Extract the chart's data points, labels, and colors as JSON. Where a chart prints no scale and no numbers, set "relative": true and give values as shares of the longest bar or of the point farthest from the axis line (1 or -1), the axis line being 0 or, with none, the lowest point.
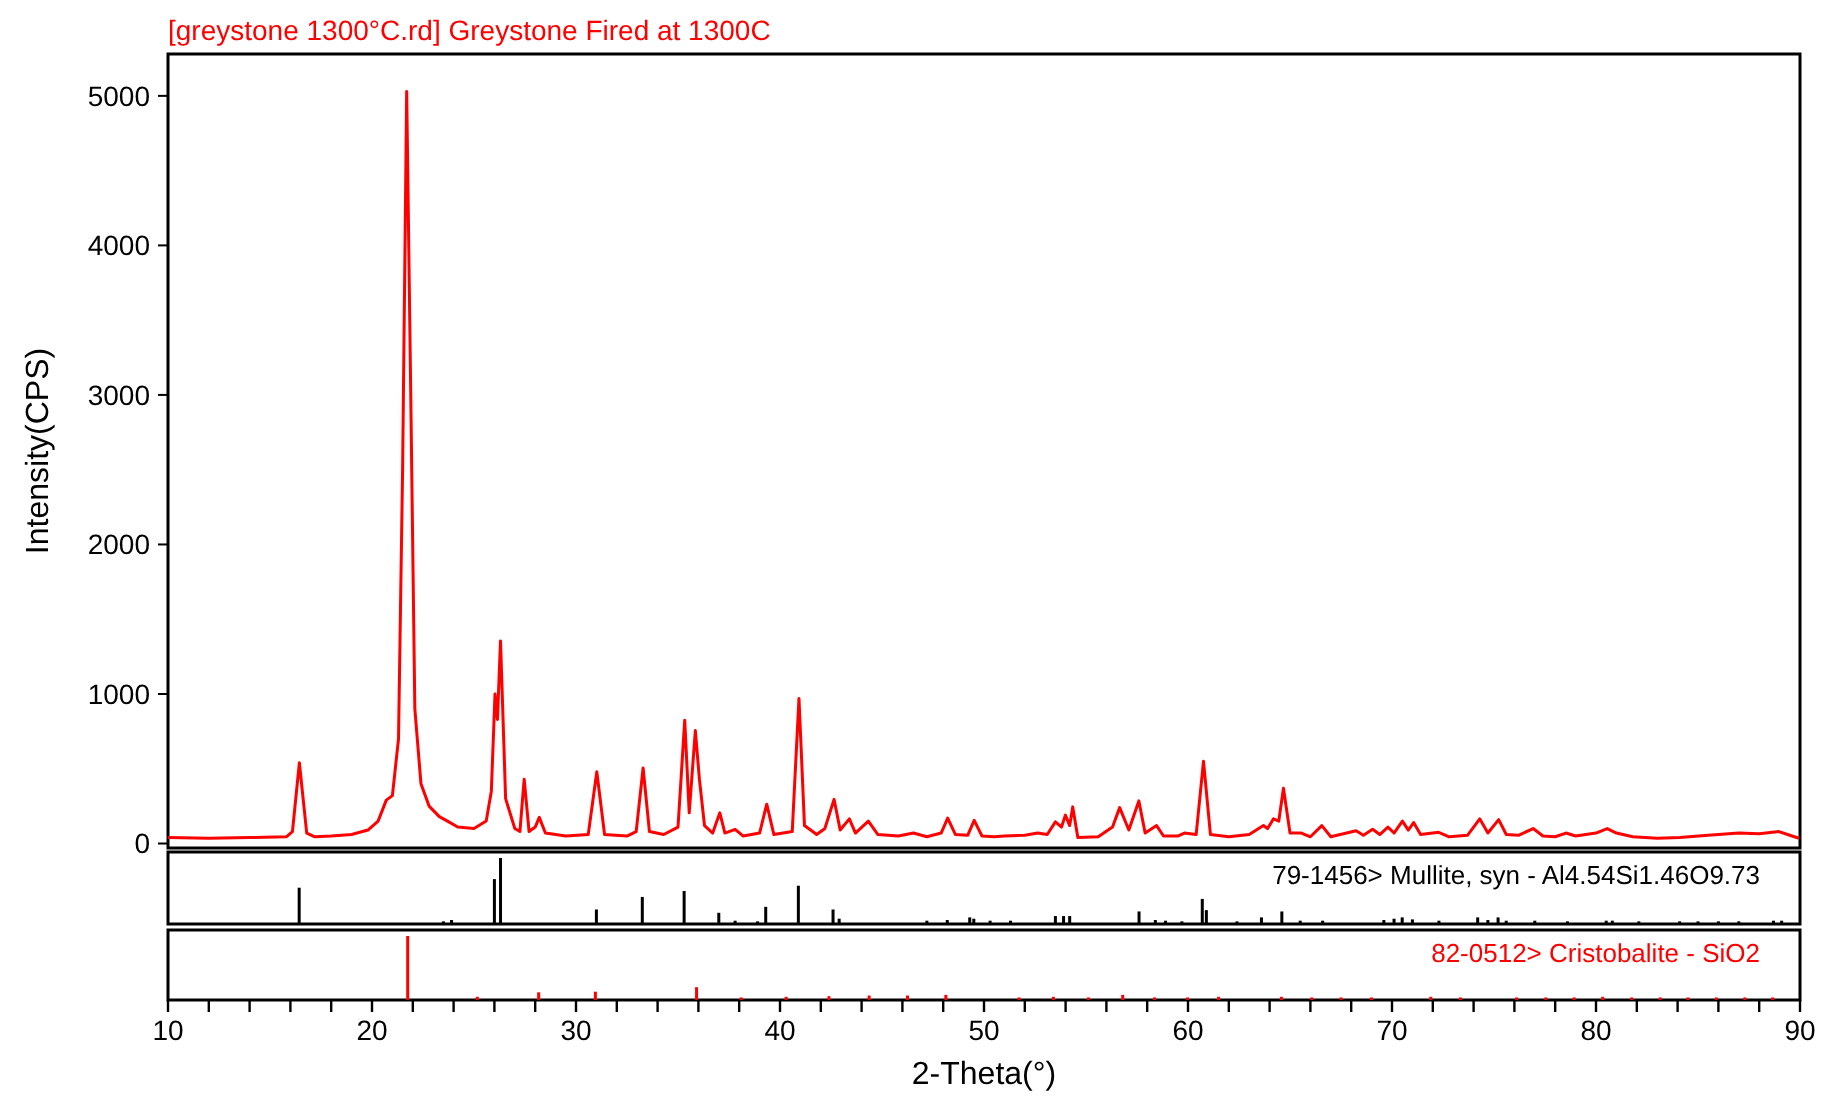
{
  "chart_data": [
    {
      "type": "line",
      "title": "[greystone 1300°C.rd] Greystone Fired at 1300C",
      "ylabel": "Intensity(CPS)",
      "xlim": [
        10,
        90
      ],
      "ylim": [
        -30,
        5280
      ],
      "yticks": [
        0,
        1000,
        2000,
        3000,
        4000,
        5000
      ],
      "tick_labels": "y",
      "series": [
        {
          "color": "#ff0000",
          "x": [
            10,
            12,
            14,
            15.8,
            16.1,
            16.44,
            16.8,
            17.2,
            18,
            19,
            19.8,
            20.3,
            20.7,
            21.0,
            21.3,
            21.5,
            21.7,
            21.9,
            22.1,
            22.4,
            22.8,
            23.3,
            23.7,
            24.2,
            25,
            25.6,
            25.85,
            26.03,
            26.15,
            26.3,
            26.55,
            27.0,
            27.25,
            27.46,
            27.7,
            28.0,
            28.2,
            28.5,
            29.5,
            30.6,
            31.02,
            31.4,
            32.5,
            32.95,
            33.29,
            33.6,
            34.3,
            35.0,
            35.33,
            35.55,
            35.85,
            36.05,
            36.3,
            36.7,
            37.05,
            37.3,
            37.8,
            38.2,
            39.0,
            39.35,
            39.7,
            40.6,
            40.93,
            41.2,
            41.8,
            42.2,
            42.65,
            42.95,
            43.4,
            43.7,
            44.33,
            44.8,
            45.8,
            46.54,
            47.2,
            47.9,
            48.22,
            48.6,
            49.2,
            49.52,
            49.9,
            50.5,
            51.0,
            52.0,
            52.63,
            53.1,
            53.5,
            53.8,
            53.99,
            54.2,
            54.35,
            54.6,
            55.6,
            56.3,
            56.65,
            57.1,
            57.59,
            57.9,
            58.46,
            58.8,
            59.5,
            59.82,
            60.4,
            60.76,
            61.1,
            62.0,
            63.0,
            63.7,
            63.9,
            64.19,
            64.45,
            64.68,
            65.0,
            65.56,
            66.0,
            66.56,
            67.0,
            68.24,
            68.6,
            69.05,
            69.4,
            69.8,
            70.1,
            70.51,
            70.8,
            71.06,
            71.4,
            72.29,
            72.8,
            73.7,
            74.3,
            74.7,
            75.23,
            75.6,
            76.2,
            76.92,
            77.4,
            78.0,
            78.53,
            79.0,
            80.0,
            80.55,
            81.0,
            81.8,
            83.0,
            84.1,
            85.5,
            87.0,
            88.0,
            88.97,
            89.5,
            89.95
          ],
          "values": [
            40,
            35,
            40,
            45,
            80,
            540,
            70,
            45,
            50,
            60,
            90,
            150,
            290,
            320,
            700,
            2500,
            5030,
            3000,
            900,
            400,
            250,
            180,
            150,
            110,
            100,
            150,
            350,
            1000,
            830,
            1355,
            300,
            100,
            80,
            430,
            80,
            110,
            175,
            70,
            50,
            60,
            480,
            60,
            50,
            80,
            505,
            80,
            60,
            110,
            825,
            205,
            755,
            430,
            120,
            70,
            205,
            70,
            95,
            50,
            70,
            263,
            60,
            80,
            970,
            120,
            60,
            100,
            295,
            90,
            165,
            70,
            150,
            60,
            50,
            70,
            45,
            70,
            170,
            60,
            55,
            155,
            50,
            45,
            50,
            55,
            70,
            60,
            145,
            110,
            190,
            120,
            245,
            40,
            45,
            110,
            240,
            90,
            285,
            70,
            120,
            50,
            50,
            70,
            60,
            550,
            60,
            45,
            60,
            120,
            100,
            165,
            150,
            370,
            70,
            70,
            45,
            120,
            45,
            85,
            55,
            95,
            60,
            110,
            70,
            150,
            90,
            140,
            60,
            75,
            45,
            55,
            165,
            70,
            160,
            60,
            55,
            100,
            50,
            45,
            70,
            50,
            70,
            100,
            70,
            45,
            35,
            40,
            55,
            70,
            65,
            80,
            55,
            35
          ]
        }
      ]
    },
    {
      "type": "bar",
      "relative": true,
      "xlim": [
        10,
        90
      ],
      "tick_labels": false,
      "series": [
        {
          "name": "79-1456> Mullite, syn - Al4.54Si1.46O9.73",
          "color": "#000000",
          "x": [
            16.43,
            23.5,
            23.9,
            26.0,
            26.3,
            31.0,
            33.25,
            35.3,
            37.0,
            37.8,
            38.9,
            39.3,
            40.9,
            42.6,
            42.9,
            47.2,
            48.2,
            49.3,
            49.5,
            50.3,
            51.3,
            53.5,
            53.9,
            54.2,
            57.6,
            58.4,
            58.9,
            59.7,
            60.7,
            60.9,
            62.4,
            63.6,
            64.6,
            65.5,
            66.6,
            69.6,
            70.1,
            70.5,
            71.0,
            72.3,
            74.2,
            74.7,
            75.2,
            75.6,
            77.0,
            78.6,
            80.5,
            80.8,
            82.1,
            84.1,
            85.0,
            86.0,
            87.0,
            88.7,
            89.1
          ],
          "values": [
            0.55,
            0.04,
            0.06,
            0.68,
            1,
            0.22,
            0.41,
            0.5,
            0.17,
            0.05,
            0.04,
            0.26,
            0.58,
            0.22,
            0.08,
            0.05,
            0.06,
            0.1,
            0.08,
            0.05,
            0.05,
            0.12,
            0.12,
            0.12,
            0.19,
            0.06,
            0.05,
            0.04,
            0.38,
            0.21,
            0.04,
            0.1,
            0.19,
            0.05,
            0.05,
            0.06,
            0.08,
            0.1,
            0.07,
            0.05,
            0.1,
            0.06,
            0.1,
            0.05,
            0.05,
            0.04,
            0.05,
            0.05,
            0.04,
            0.04,
            0.04,
            0.04,
            0.04,
            0.05,
            0.05
          ]
        }
      ]
    },
    {
      "type": "bar",
      "relative": true,
      "xlabel": "2-Theta(°)",
      "xlim": [
        10,
        90
      ],
      "tick_labels": "x",
      "xticks": [
        10,
        {
          "value": 12,
          "label": null
        },
        {
          "value": 14,
          "label": null
        },
        {
          "value": 16,
          "label": null
        },
        {
          "value": 18,
          "label": null
        },
        20,
        {
          "value": 22,
          "label": null
        },
        {
          "value": 24,
          "label": null
        },
        {
          "value": 26,
          "label": null
        },
        {
          "value": 28,
          "label": null
        },
        30,
        {
          "value": 32,
          "label": null
        },
        {
          "value": 34,
          "label": null
        },
        {
          "value": 36,
          "label": null
        },
        {
          "value": 38,
          "label": null
        },
        40,
        {
          "value": 42,
          "label": null
        },
        {
          "value": 44,
          "label": null
        },
        {
          "value": 46,
          "label": null
        },
        {
          "value": 48,
          "label": null
        },
        50,
        {
          "value": 52,
          "label": null
        },
        {
          "value": 54,
          "label": null
        },
        {
          "value": 56,
          "label": null
        },
        {
          "value": 58,
          "label": null
        },
        60,
        {
          "value": 62,
          "label": null
        },
        {
          "value": 64,
          "label": null
        },
        {
          "value": 66,
          "label": null
        },
        {
          "value": 68,
          "label": null
        },
        70,
        {
          "value": 72,
          "label": null
        },
        {
          "value": 74,
          "label": null
        },
        {
          "value": 76,
          "label": null
        },
        {
          "value": 78,
          "label": null
        },
        80,
        {
          "value": 82,
          "label": null
        },
        {
          "value": 84,
          "label": null
        },
        {
          "value": 86,
          "label": null
        },
        {
          "value": 88,
          "label": null
        },
        90
      ],
      "series": [
        {
          "name": "82-0512> Cristobalite - SiO2",
          "color": "#ff0000",
          "x": [
            21.75,
            25.16,
            28.17,
            30.95,
            35.91,
            38.1,
            40.3,
            42.4,
            44.37,
            46.25,
            48.13,
            51.72,
            53.4,
            55.12,
            56.8,
            58.36,
            59.98,
            61.5,
            64.58,
            66.07,
            67.5,
            68.99,
            71.9,
            73.36,
            76.11,
            77.54,
            78.93,
            80.33,
            81.75,
            83.15,
            84.51,
            85.9,
            87.3,
            88.66
          ],
          "values": [
            1,
            0.05,
            0.12,
            0.13,
            0.2,
            0.04,
            0.05,
            0.06,
            0.07,
            0.07,
            0.08,
            0.04,
            0.05,
            0.04,
            0.08,
            0.04,
            0.04,
            0.05,
            0.05,
            0.04,
            0.04,
            0.04,
            0.05,
            0.04,
            0.04,
            0.04,
            0.04,
            0.05,
            0.04,
            0.04,
            0.04,
            0.04,
            0.04,
            0.04
          ]
        }
      ]
    }
  ]
}
